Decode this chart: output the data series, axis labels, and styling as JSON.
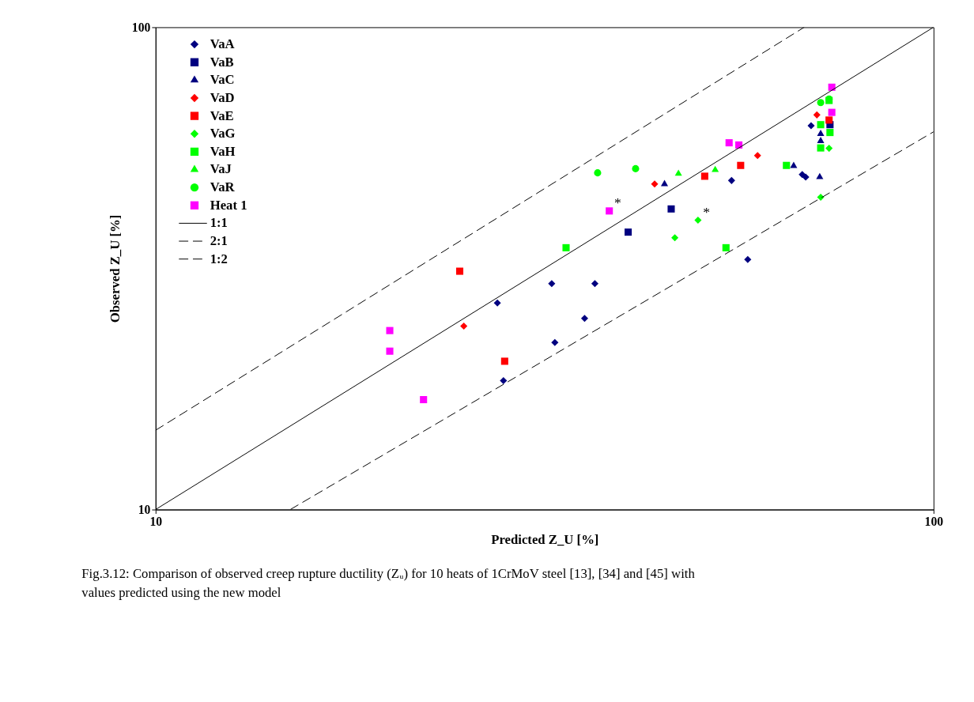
{
  "chart_data": {
    "type": "scatter",
    "xlabel": "Predicted Z_U [%]",
    "ylabel": "Observed Z_U [%]",
    "log": "xy",
    "xlim": [
      10,
      100
    ],
    "ylim": [
      10,
      100
    ],
    "xticks": [
      10,
      100
    ],
    "yticks": [
      10,
      100
    ],
    "grid": false,
    "legend": "top left",
    "series": [
      {
        "name": "VaA",
        "color": "#000080",
        "marker": "diamond",
        "x": [
          27.5,
          32.3,
          36.7,
          35.6,
          32.6,
          28.0,
          55.0,
          57.7,
          69.6,
          67.8,
          68.5
        ],
        "values": [
          26.8,
          29.4,
          29.4,
          24.9,
          22.2,
          18.5,
          48.1,
          33.0,
          62.5,
          49.5,
          48.9
        ]
      },
      {
        "name": "VaB",
        "color": "#000080",
        "marker": "square",
        "x": [
          40.5,
          46.0,
          73.6
        ],
        "values": [
          37.6,
          42.0,
          62.8
        ]
      },
      {
        "name": "VaC",
        "color": "#000080",
        "marker": "triangle",
        "x": [
          45.1,
          66.1,
          71.4,
          71.6,
          71.6
        ],
        "values": [
          47.3,
          51.6,
          48.9,
          58.1,
          60.1
        ]
      },
      {
        "name": "VaD",
        "color": "#ff0000",
        "marker": "diamond",
        "x": [
          24.9,
          43.8,
          59.4,
          70.8
        ],
        "values": [
          24.0,
          47.3,
          54.2,
          65.8
        ]
      },
      {
        "name": "VaE",
        "color": "#ff0000",
        "marker": "square",
        "x": [
          24.6,
          28.1,
          50.8,
          56.5,
          73.4
        ],
        "values": [
          31.2,
          20.3,
          49.1,
          51.7,
          64.2
        ]
      },
      {
        "name": "VaG",
        "color": "#00ff00",
        "marker": "diamond",
        "x": [
          46.5,
          49.8,
          73.4,
          71.6
        ],
        "values": [
          36.6,
          39.8,
          56.1,
          44.4
        ]
      },
      {
        "name": "VaH",
        "color": "#00ff00",
        "marker": "square",
        "x": [
          33.7,
          54.1,
          64.7,
          71.6,
          73.6,
          73.4,
          71.6
        ],
        "values": [
          34.9,
          34.9,
          51.7,
          56.2,
          60.5,
          70.5,
          62.8
        ]
      },
      {
        "name": "VaJ",
        "color": "#00ff00",
        "marker": "triangle",
        "x": [
          47.0,
          52.4
        ],
        "values": [
          49.7,
          50.6
        ]
      },
      {
        "name": "VaR",
        "color": "#00ff00",
        "marker": "circle",
        "x": [
          37.0,
          41.4,
          71.6,
          73.4
        ],
        "values": [
          49.9,
          50.9,
          69.8,
          71.0
        ]
      },
      {
        "name": "Heat 1",
        "color": "#ff00ff",
        "marker": "square",
        "x": [
          20.0,
          20.0,
          22.1,
          38.3,
          54.6,
          56.2,
          74.0,
          74.0
        ],
        "values": [
          23.5,
          21.3,
          16.9,
          41.6,
          57.6,
          57.0,
          75.1,
          66.6
        ]
      },
      {
        "name": "1:1",
        "type": "line",
        "color": "#000000",
        "line_style": "solid",
        "x": [
          10,
          100
        ],
        "values": [
          10,
          100
        ]
      },
      {
        "name": "2:1",
        "type": "line",
        "color": "#000000",
        "line_style": "dashed",
        "x": [
          10,
          68.2
        ],
        "values": [
          14.6,
          100
        ]
      },
      {
        "name": "1:2",
        "type": "line",
        "color": "#000000",
        "line_style": "dashed",
        "x": [
          14.9,
          100
        ],
        "values": [
          10,
          60.7
        ]
      }
    ],
    "annotations": [
      {
        "text": "*",
        "x": 38.3,
        "y": 41.6
      },
      {
        "text": "*",
        "x": 49.8,
        "y": 39.8
      },
      "Fig.3.12: Comparison of observed creep rupture ductility (Zᵤ) for 10 heats of 1CrMoV steel [13], [34] and [45] with values predicted using the new model"
    ]
  }
}
